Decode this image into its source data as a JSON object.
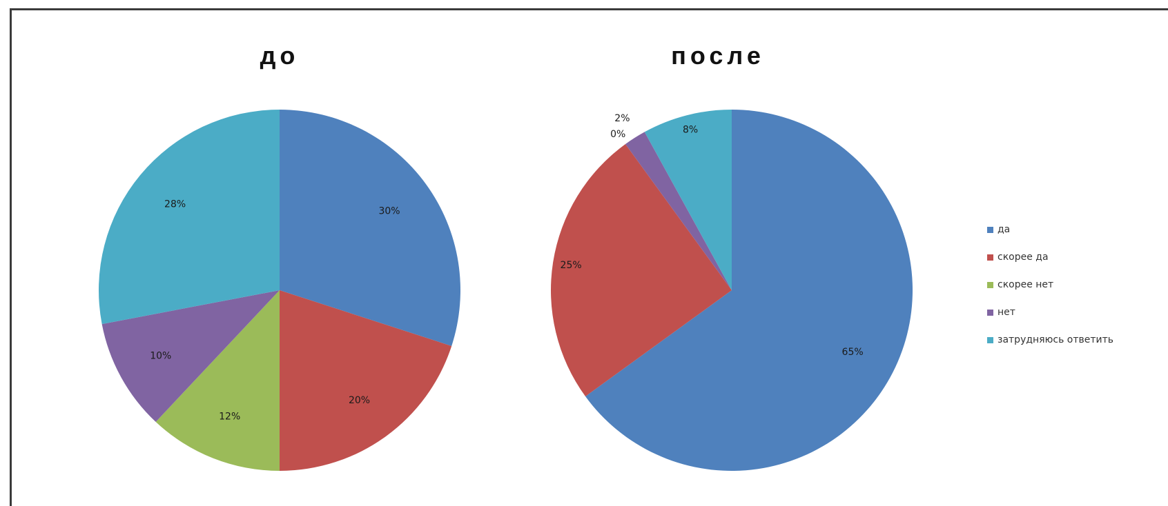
{
  "chart_data": [
    {
      "type": "pie",
      "title": "до",
      "categories": [
        "да",
        "скорее да",
        "скорее нет",
        "нет",
        "затрудняюсь ответить"
      ],
      "values": [
        30,
        20,
        12,
        10,
        28
      ],
      "labels": [
        "30%",
        "20%",
        "12%",
        "10%",
        "28%"
      ],
      "start_angle_deg": 0,
      "direction": "clockwise"
    },
    {
      "type": "pie",
      "title": "после",
      "categories": [
        "да",
        "скорее да",
        "скорее нет",
        "нет",
        "затрудняюсь ответить"
      ],
      "values": [
        65,
        25,
        0,
        2,
        8
      ],
      "labels": [
        "65%",
        "25%",
        "0%",
        "2%",
        "8%"
      ],
      "start_angle_deg": 0,
      "direction": "clockwise"
    }
  ],
  "legend": {
    "position": "right",
    "items": [
      {
        "label": "да",
        "color": "#4F81BD"
      },
      {
        "label": "скорее да",
        "color": "#C0504D"
      },
      {
        "label": "скорее нет",
        "color": "#9BBB59"
      },
      {
        "label": "нет",
        "color": "#8064A2"
      },
      {
        "label": "затрудняюсь ответить",
        "color": "#4BACC6"
      }
    ]
  }
}
